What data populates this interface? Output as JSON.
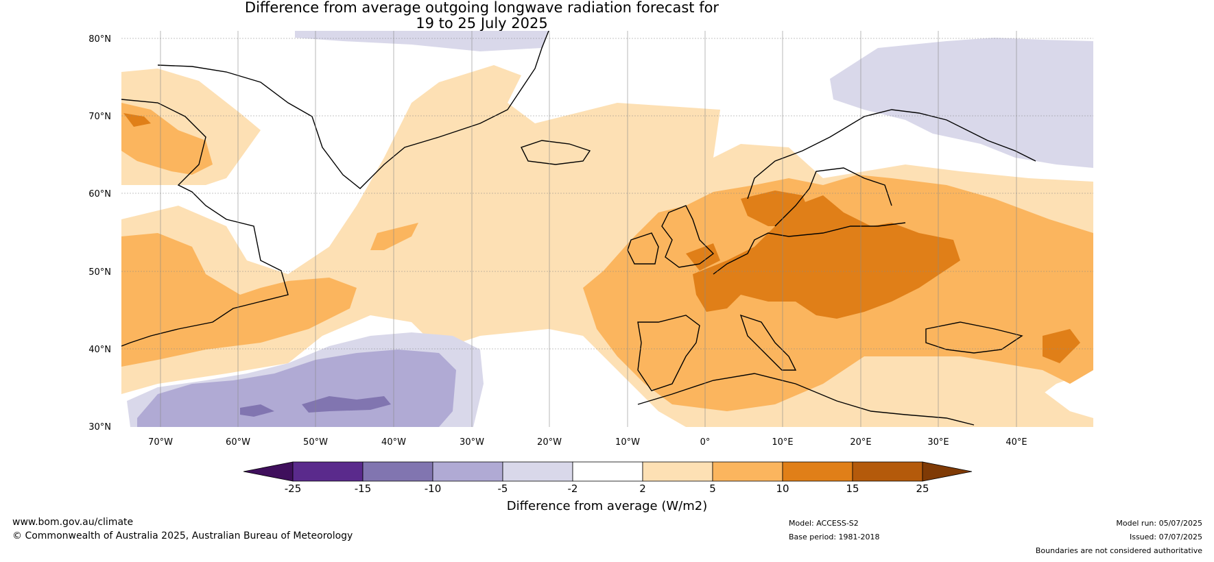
{
  "title": {
    "line1": "Difference from average outgoing longwave radiation forecast for",
    "line2": "19 to 25 July 2025"
  },
  "map": {
    "latitude_labels": [
      "80°N",
      "70°N",
      "60°N",
      "50°N",
      "40°N",
      "30°N"
    ],
    "longitude_labels": [
      "70°W",
      "60°W",
      "50°W",
      "40°W",
      "30°W",
      "20°W",
      "10°W",
      "0°",
      "10°E",
      "20°E",
      "30°E",
      "40°E"
    ],
    "region": "North Atlantic and Europe"
  },
  "colorbar": {
    "title": "Difference from average (W/m2)",
    "tick_labels": [
      "-25",
      "-15",
      "-10",
      "-5",
      "-2",
      "2",
      "5",
      "10",
      "15",
      "25"
    ],
    "colors": [
      "#3f0f5c",
      "#5a2a8c",
      "#8175b0",
      "#b0aad4",
      "#d9d8ea",
      "#ffffff",
      "#fde0b4",
      "#fbb55e",
      "#e07f18",
      "#b45a0b",
      "#7f3a05"
    ]
  },
  "footer": {
    "website": "www.bom.gov.au/climate",
    "copyright": "© Commonwealth of Australia 2025, Australian Bureau of Meteorology",
    "model": "Model: ACCESS-S2",
    "base_period": "Base period: 1981-2018",
    "model_run": "Model run: 05/07/2025",
    "issued": "Issued: 07/07/2025",
    "disclaimer": "Boundaries are not considered authoritative"
  }
}
